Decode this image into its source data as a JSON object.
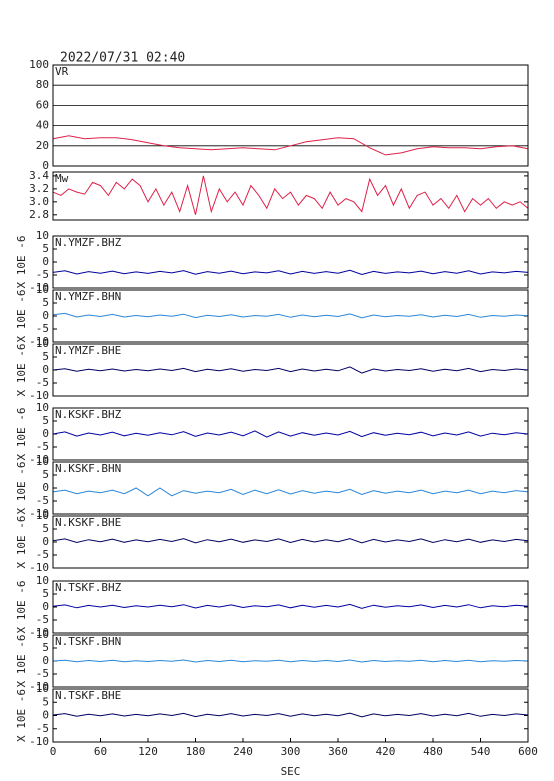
{
  "title": "2022/07/31 02:40",
  "chart_data": [
    {
      "type": "line",
      "title": "VR",
      "xlim": [
        0,
        600
      ],
      "ylim": [
        0,
        100
      ],
      "yticks": [
        0,
        20,
        40,
        60,
        80,
        100
      ],
      "grid": true,
      "color": "#e0204a",
      "x": [
        0,
        20,
        40,
        60,
        80,
        100,
        120,
        140,
        160,
        180,
        200,
        220,
        240,
        260,
        280,
        300,
        320,
        340,
        360,
        380,
        400,
        420,
        440,
        460,
        480,
        500,
        520,
        540,
        560,
        580,
        600
      ],
      "values": [
        27,
        30,
        27,
        28,
        28,
        26,
        23,
        20,
        18,
        17,
        16,
        17,
        18,
        17,
        16,
        20,
        24,
        26,
        28,
        27,
        18,
        11,
        13,
        17,
        19,
        18,
        18,
        17,
        19,
        20,
        17
      ]
    },
    {
      "type": "line",
      "title": "Mw",
      "xlim": [
        0,
        600
      ],
      "ylim": [
        2.72,
        3.46
      ],
      "yticks": [
        {
          "value": 2.8,
          "label": "2.8"
        },
        {
          "value": 3,
          "label": "3.0"
        },
        3.2,
        3.4
      ],
      "grid": false,
      "color": "#e0204a",
      "x": [
        0,
        10,
        20,
        30,
        40,
        50,
        60,
        70,
        80,
        90,
        100,
        110,
        120,
        130,
        140,
        150,
        160,
        170,
        180,
        190,
        200,
        210,
        220,
        230,
        240,
        250,
        260,
        270,
        280,
        290,
        300,
        310,
        320,
        330,
        340,
        350,
        360,
        370,
        380,
        390,
        400,
        410,
        420,
        430,
        440,
        450,
        460,
        470,
        480,
        490,
        500,
        510,
        520,
        530,
        540,
        550,
        560,
        570,
        580,
        590,
        600
      ],
      "values": [
        3.15,
        3.1,
        3.2,
        3.15,
        3.12,
        3.3,
        3.25,
        3.1,
        3.3,
        3.2,
        3.35,
        3.25,
        3,
        3.2,
        2.95,
        3.15,
        2.85,
        3.25,
        2.8,
        3.4,
        2.85,
        3.2,
        3,
        3.15,
        2.95,
        3.25,
        3.1,
        2.9,
        3.2,
        3.05,
        3.15,
        2.95,
        3.1,
        3.05,
        2.9,
        3.15,
        2.95,
        3.05,
        3,
        2.85,
        3.35,
        3.1,
        3.25,
        2.95,
        3.2,
        2.9,
        3.1,
        3.15,
        2.95,
        3.05,
        2.9,
        3.1,
        2.85,
        3.05,
        2.95,
        3.05,
        2.9,
        3,
        2.95,
        3,
        2.9
      ]
    },
    {
      "type": "line",
      "title": "N.YMZF.BHZ",
      "ylabel": "X 10E -6",
      "xlim": [
        0,
        600
      ],
      "ylim": [
        -10,
        10
      ],
      "yticks": [
        -10,
        -5,
        0,
        5,
        10
      ],
      "grid": false,
      "color": "#0000a0",
      "x": [
        0,
        15,
        30,
        45,
        60,
        75,
        90,
        105,
        120,
        135,
        150,
        165,
        180,
        195,
        210,
        225,
        240,
        255,
        270,
        285,
        300,
        315,
        330,
        345,
        360,
        375,
        390,
        405,
        420,
        435,
        450,
        465,
        480,
        495,
        510,
        525,
        540,
        555,
        570,
        585,
        600
      ],
      "values": [
        -4,
        -3.4,
        -4.6,
        -3.7,
        -4.3,
        -3.5,
        -4.5,
        -3.8,
        -4.4,
        -3.6,
        -4.2,
        -3.3,
        -4.7,
        -3.7,
        -4.3,
        -3.5,
        -4.5,
        -3.8,
        -4.2,
        -3.4,
        -4.6,
        -3.6,
        -4.4,
        -3.7,
        -4.3,
        -3.2,
        -4.8,
        -3.6,
        -4.4,
        -3.8,
        -4.2,
        -3.5,
        -4.5,
        -3.7,
        -4.3,
        -3.4,
        -4.6,
        -3.8,
        -4.2,
        -3.6,
        -4
      ]
    },
    {
      "type": "line",
      "title": "N.YMZF.BHN",
      "ylabel": "X 10E -6",
      "xlim": [
        0,
        600
      ],
      "ylim": [
        -10,
        10
      ],
      "yticks": [
        -10,
        -5,
        0,
        5,
        10
      ],
      "grid": false,
      "color": "#2a86d8",
      "x": [
        0,
        15,
        30,
        45,
        60,
        75,
        90,
        105,
        120,
        135,
        150,
        165,
        180,
        195,
        210,
        225,
        240,
        255,
        270,
        285,
        300,
        315,
        330,
        345,
        360,
        375,
        390,
        405,
        420,
        435,
        450,
        465,
        480,
        495,
        510,
        525,
        540,
        555,
        570,
        585,
        600
      ],
      "values": [
        0.5,
        1,
        -0.4,
        0.4,
        -0.2,
        0.6,
        -0.4,
        0.2,
        -0.3,
        0.4,
        -0.1,
        0.7,
        -0.6,
        0.3,
        -0.2,
        0.5,
        -0.4,
        0.2,
        -0.1,
        0.6,
        -0.5,
        0.4,
        -0.3,
        0.3,
        -0.2,
        0.8,
        -0.7,
        0.4,
        -0.3,
        0.2,
        -0.1,
        0.5,
        -0.4,
        0.3,
        -0.2,
        0.6,
        -0.5,
        0.2,
        -0.1,
        0.4,
        0.1
      ]
    },
    {
      "type": "line",
      "title": "N.YMZF.BHE",
      "ylabel": "X 10E -6",
      "xlim": [
        0,
        600
      ],
      "ylim": [
        -10,
        10
      ],
      "yticks": [
        -10,
        -5,
        0,
        5,
        10
      ],
      "grid": false,
      "color": "#000060",
      "x": [
        0,
        15,
        30,
        45,
        60,
        75,
        90,
        105,
        120,
        135,
        150,
        165,
        180,
        195,
        210,
        225,
        240,
        255,
        270,
        285,
        300,
        315,
        330,
        345,
        360,
        375,
        390,
        405,
        420,
        435,
        450,
        465,
        480,
        495,
        510,
        525,
        540,
        555,
        570,
        585,
        600
      ],
      "values": [
        0,
        0.5,
        -0.5,
        0.3,
        -0.3,
        0.4,
        -0.4,
        0.2,
        -0.3,
        0.4,
        -0.2,
        0.6,
        -0.6,
        0.3,
        -0.3,
        0.5,
        -0.5,
        0.2,
        -0.2,
        0.6,
        -0.6,
        0.4,
        -0.4,
        0.3,
        -0.3,
        1.2,
        -1.2,
        0.4,
        -0.4,
        0.2,
        -0.2,
        0.5,
        -0.5,
        0.3,
        -0.3,
        0.6,
        -0.6,
        0.2,
        -0.2,
        0.4,
        0
      ]
    },
    {
      "type": "line",
      "title": "N.KSKF.BHZ",
      "ylabel": "X 10E -6",
      "xlim": [
        0,
        600
      ],
      "ylim": [
        -10,
        10
      ],
      "yticks": [
        -10,
        -5,
        0,
        5,
        10
      ],
      "grid": false,
      "color": "#0000a0",
      "x": [
        0,
        15,
        30,
        45,
        60,
        75,
        90,
        105,
        120,
        135,
        150,
        165,
        180,
        195,
        210,
        225,
        240,
        255,
        270,
        285,
        300,
        315,
        330,
        345,
        360,
        375,
        390,
        405,
        420,
        435,
        450,
        465,
        480,
        495,
        510,
        525,
        540,
        555,
        570,
        585,
        600
      ],
      "values": [
        0,
        0.8,
        -0.8,
        0.4,
        -0.4,
        0.7,
        -0.7,
        0.3,
        -0.5,
        0.5,
        -0.3,
        0.9,
        -0.9,
        0.4,
        -0.4,
        0.7,
        -0.7,
        1.2,
        -1.2,
        0.8,
        -0.8,
        0.5,
        -0.5,
        0.4,
        -0.4,
        1,
        -1,
        0.5,
        -0.5,
        0.3,
        -0.3,
        0.7,
        -0.7,
        0.4,
        -0.4,
        0.8,
        -0.8,
        0.3,
        -0.3,
        0.5,
        0
      ]
    },
    {
      "type": "line",
      "title": "N.KSKF.BHN",
      "ylabel": "X 10E -6",
      "xlim": [
        0,
        600
      ],
      "ylim": [
        -10,
        10
      ],
      "yticks": [
        -10,
        -5,
        0,
        5,
        10
      ],
      "grid": false,
      "color": "#2a86d8",
      "x": [
        0,
        15,
        30,
        45,
        60,
        75,
        90,
        105,
        120,
        135,
        150,
        165,
        180,
        195,
        210,
        225,
        240,
        255,
        270,
        285,
        300,
        315,
        330,
        345,
        360,
        375,
        390,
        405,
        420,
        435,
        450,
        465,
        480,
        495,
        510,
        525,
        540,
        555,
        570,
        585,
        600
      ],
      "values": [
        -1.5,
        -0.8,
        -2.2,
        -1.2,
        -1.8,
        -0.8,
        -2.2,
        0,
        -3,
        0,
        -3,
        -1,
        -2,
        -1.2,
        -1.8,
        -0.5,
        -2.5,
        -0.8,
        -2.2,
        -0.7,
        -2.3,
        -1,
        -2,
        -1.2,
        -1.8,
        -0.5,
        -2.5,
        -1,
        -2,
        -1.2,
        -1.8,
        -0.8,
        -2.2,
        -1.2,
        -1.8,
        -0.8,
        -2.2,
        -1.2,
        -1.8,
        -1,
        -1.5
      ]
    },
    {
      "type": "line",
      "title": "N.KSKF.BHE",
      "ylabel": "X 10E -6",
      "xlim": [
        0,
        600
      ],
      "ylim": [
        -10,
        10
      ],
      "yticks": [
        -10,
        -5,
        0,
        5,
        10
      ],
      "grid": false,
      "color": "#000060",
      "x": [
        0,
        15,
        30,
        45,
        60,
        75,
        90,
        105,
        120,
        135,
        150,
        165,
        180,
        195,
        210,
        225,
        240,
        255,
        270,
        285,
        300,
        315,
        330,
        345,
        360,
        375,
        390,
        405,
        420,
        435,
        450,
        465,
        480,
        495,
        510,
        525,
        540,
        555,
        570,
        585,
        600
      ],
      "values": [
        0.5,
        1.2,
        -0.2,
        0.9,
        0.1,
        1.1,
        -0.1,
        0.8,
        0.1,
        1,
        0.2,
        1.3,
        -0.3,
        0.9,
        0.1,
        1.1,
        -0.1,
        0.8,
        0.2,
        1.2,
        -0.2,
        1,
        0,
        0.9,
        0.1,
        1.3,
        -0.3,
        1,
        0,
        0.8,
        0.2,
        1.2,
        -0.2,
        0.9,
        0.1,
        1.1,
        -0.1,
        0.8,
        0.2,
        1,
        0.5
      ]
    },
    {
      "type": "line",
      "title": "N.TSKF.BHZ",
      "ylabel": "X 10E -6",
      "xlim": [
        0,
        600
      ],
      "ylim": [
        -10,
        10
      ],
      "yticks": [
        -10,
        -5,
        0,
        5,
        10
      ],
      "grid": false,
      "color": "#0000a0",
      "x": [
        0,
        15,
        30,
        45,
        60,
        75,
        90,
        105,
        120,
        135,
        150,
        165,
        180,
        195,
        210,
        225,
        240,
        255,
        270,
        285,
        300,
        315,
        330,
        345,
        360,
        375,
        390,
        405,
        420,
        435,
        450,
        465,
        480,
        495,
        510,
        525,
        540,
        555,
        570,
        585,
        600
      ],
      "values": [
        0.3,
        0.8,
        -0.3,
        0.6,
        0,
        0.7,
        -0.2,
        0.5,
        0,
        0.7,
        0.1,
        0.9,
        -0.4,
        0.6,
        0,
        0.8,
        -0.2,
        0.5,
        0.1,
        0.8,
        -0.3,
        0.7,
        -0.1,
        0.6,
        0,
        1,
        -0.5,
        0.7,
        -0.1,
        0.5,
        0.1,
        0.8,
        -0.2,
        0.6,
        0,
        0.9,
        -0.3,
        0.5,
        0.1,
        0.7,
        0.3
      ]
    },
    {
      "type": "line",
      "title": "N.TSKF.BHN",
      "ylabel": "X 10E -6",
      "xlim": [
        0,
        600
      ],
      "ylim": [
        -10,
        10
      ],
      "yticks": [
        -10,
        -5,
        0,
        5,
        10
      ],
      "grid": false,
      "color": "#2a86d8",
      "x": [
        0,
        15,
        30,
        45,
        60,
        75,
        90,
        105,
        120,
        135,
        150,
        165,
        180,
        195,
        210,
        225,
        240,
        255,
        270,
        285,
        300,
        315,
        330,
        345,
        360,
        375,
        390,
        405,
        420,
        435,
        450,
        465,
        480,
        495,
        510,
        525,
        540,
        555,
        570,
        585,
        600
      ],
      "values": [
        0,
        0.3,
        -0.3,
        0.2,
        -0.2,
        0.3,
        -0.3,
        0.1,
        -0.2,
        0.2,
        -0.1,
        0.4,
        -0.4,
        0.2,
        -0.2,
        0.3,
        -0.3,
        0.1,
        -0.1,
        0.3,
        -0.3,
        0.2,
        -0.2,
        0.2,
        -0.2,
        0.4,
        -0.4,
        0.2,
        -0.2,
        0.1,
        -0.1,
        0.3,
        -0.3,
        0.2,
        -0.2,
        0.3,
        -0.3,
        0.1,
        -0.1,
        0.2,
        0
      ]
    },
    {
      "type": "line",
      "title": "N.TSKF.BHE",
      "ylabel": "X 10E -6",
      "xlabel": "SEC",
      "xlim": [
        0,
        600
      ],
      "ylim": [
        -10,
        10
      ],
      "yticks": [
        -10,
        -5,
        0,
        5,
        10
      ],
      "grid": false,
      "color": "#000060",
      "xticks": [
        0,
        60,
        120,
        180,
        240,
        300,
        360,
        420,
        480,
        540,
        600
      ],
      "x": [
        0,
        15,
        30,
        45,
        60,
        75,
        90,
        105,
        120,
        135,
        150,
        165,
        180,
        195,
        210,
        225,
        240,
        255,
        270,
        285,
        300,
        315,
        330,
        345,
        360,
        375,
        390,
        405,
        420,
        435,
        450,
        465,
        480,
        495,
        510,
        525,
        540,
        555,
        570,
        585,
        600
      ],
      "values": [
        0.2,
        0.7,
        -0.3,
        0.5,
        -0.1,
        0.6,
        -0.2,
        0.4,
        -0.1,
        0.6,
        0,
        0.8,
        -0.4,
        0.5,
        -0.1,
        0.7,
        -0.2,
        0.4,
        0,
        0.7,
        -0.3,
        0.6,
        -0.1,
        0.5,
        -0.1,
        0.9,
        -0.5,
        0.6,
        -0.1,
        0.4,
        0,
        0.7,
        -0.2,
        0.5,
        -0.1,
        0.8,
        -0.3,
        0.4,
        0,
        0.6,
        0.2
      ]
    }
  ]
}
